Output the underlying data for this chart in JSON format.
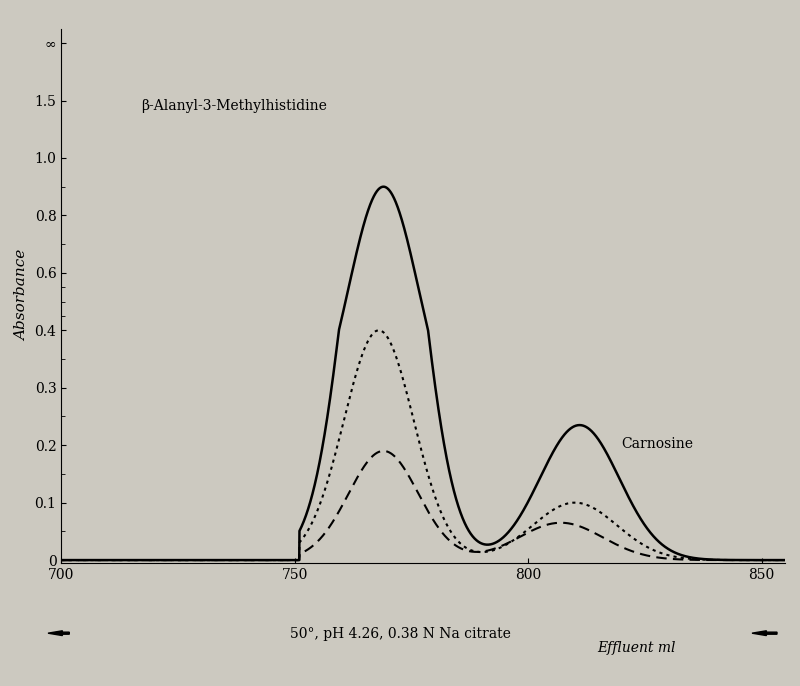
{
  "xlabel_arrow": "50°, pH 4.26, 0.38 N Na citrate",
  "xlabel_right": "Effluent ml",
  "ylabel": "Absorbance",
  "annotation_beta": "β-Alanyl-3-Methylhistidine",
  "annotation_carnosine": "Carnosine",
  "ytick_vals": [
    0,
    0.1,
    0.2,
    0.3,
    0.4,
    0.6,
    0.8,
    1.0,
    1.5
  ],
  "ytick_labels": [
    "0",
    "0.1",
    "0.2",
    "0.3",
    "0.4",
    "0.6",
    "0.8",
    "1.0",
    "1.5",
    "∞"
  ],
  "background": "#ccc9c0",
  "xlim": [
    700,
    855
  ],
  "xticks": [
    700,
    750,
    800,
    850
  ]
}
